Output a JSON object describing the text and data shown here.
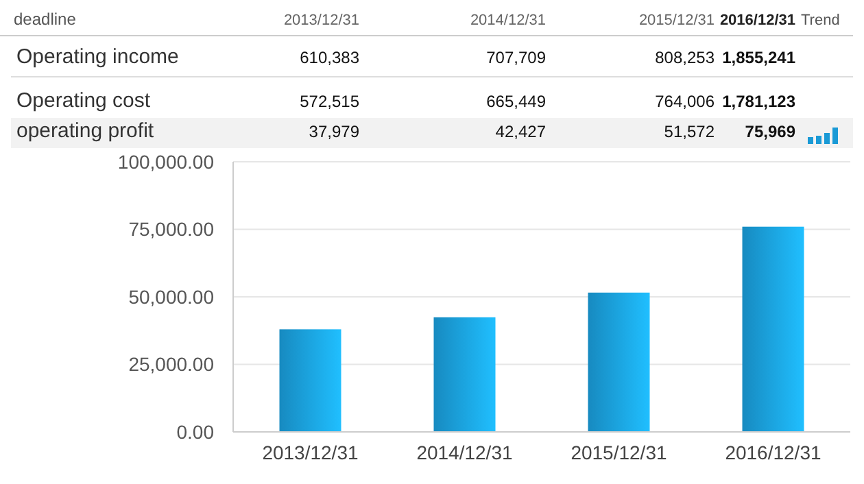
{
  "chart_data": [
    {
      "type": "other",
      "title": "deadline",
      "annotations": [
        "Trend"
      ],
      "categories": [
        "2013/12/31",
        "2014/12/31",
        "2015/12/31",
        "2016/12/31"
      ],
      "y_categories": [
        "Operating income",
        "Operating cost",
        "operating profit"
      ],
      "cell_labels": [
        [
          "610,383",
          "707,709",
          "808,253",
          "1,855,241"
        ],
        [
          "572,515",
          "665,449",
          "764,006",
          "1,781,123"
        ],
        [
          "37,979",
          "42,427",
          "51,572",
          "75,969"
        ]
      ]
    },
    {
      "type": "bar",
      "categories": [
        "2013/12/31",
        "2014/12/31",
        "2015/12/31",
        "2016/12/31"
      ],
      "values": [
        37979,
        42427,
        51572,
        75969
      ],
      "color": "#1a9ad6",
      "ylim": [
        0,
        100000
      ],
      "yticks": [
        {
          "value": 0,
          "label": "0.00"
        },
        {
          "value": 25000,
          "label": "25,000.00"
        },
        {
          "value": 50000,
          "label": "50,000.00"
        },
        {
          "value": 75000,
          "label": "75,000.00"
        },
        {
          "value": 100000,
          "label": "100,000.00"
        }
      ],
      "grid": "y"
    }
  ]
}
